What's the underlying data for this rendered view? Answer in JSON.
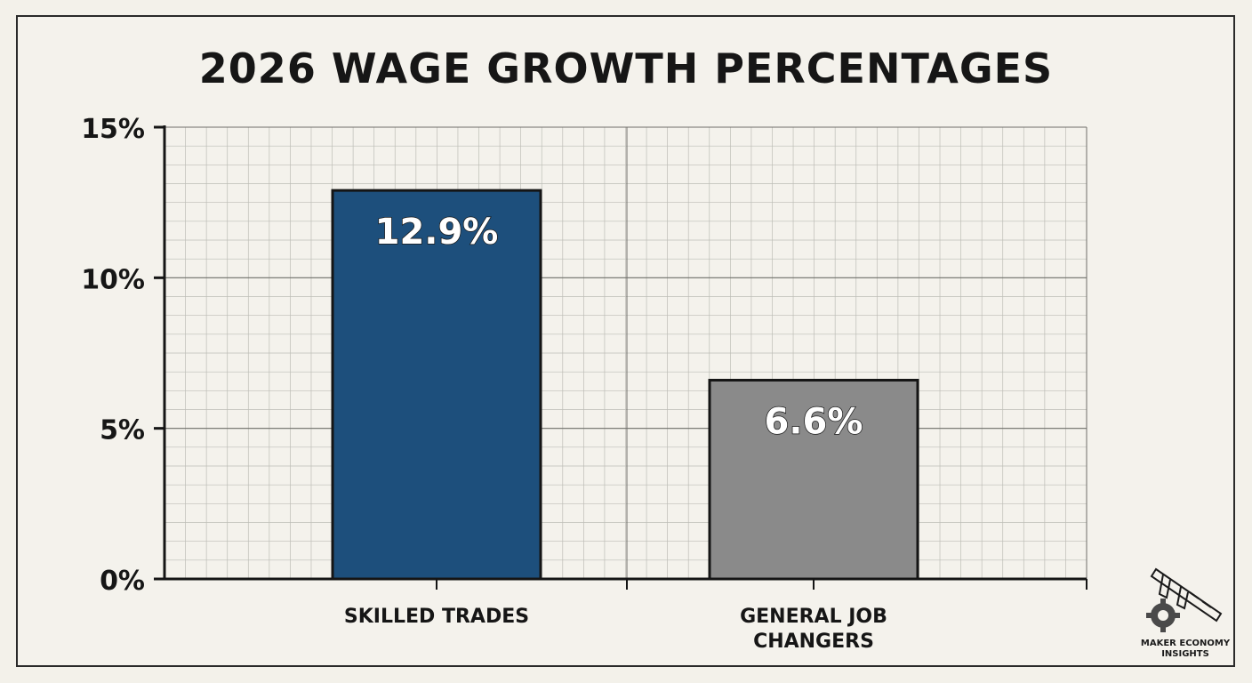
{
  "chart_data": {
    "type": "bar",
    "title": "2026 WAGE GROWTH PERCENTAGES",
    "categories": [
      "SKILLED TRADES",
      "GENERAL JOB CHANGERS"
    ],
    "category_lines": [
      [
        "SKILLED TRADES"
      ],
      [
        "GENERAL JOB",
        "CHANGERS"
      ]
    ],
    "values": [
      12.9,
      6.6
    ],
    "data_labels": [
      "12.9%",
      "6.6%"
    ],
    "bar_colors": [
      "#1d4f7c",
      "#8a8a8a"
    ],
    "ylim": [
      0,
      15
    ],
    "yticks": [
      0,
      5,
      10,
      15
    ],
    "ytick_labels": [
      "0%",
      "5%",
      "10%",
      "15%"
    ],
    "grid": true,
    "xlabel": "",
    "ylabel": ""
  },
  "branding": {
    "icon": "caliper-gear-icon",
    "text_line1": "MAKER ECONOMY",
    "text_line2": "INSIGHTS"
  }
}
